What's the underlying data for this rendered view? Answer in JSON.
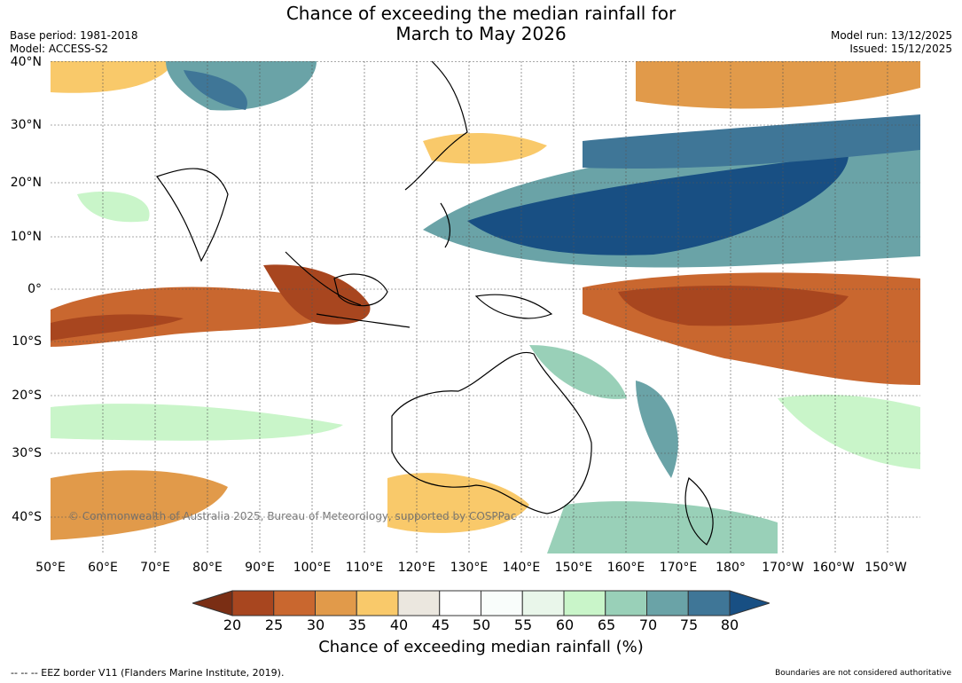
{
  "title": {
    "line1": "Chance of exceeding the median rainfall for",
    "line2": "March to May 2026"
  },
  "meta": {
    "base_period": "Base period: 1981-2018",
    "model": "Model: ACCESS-S2",
    "model_run": "Model run: 13/12/2025",
    "issued": "Issued: 15/12/2025"
  },
  "map": {
    "longitude_labels": [
      "50°E",
      "60°E",
      "70°E",
      "80°E",
      "90°E",
      "100°E",
      "110°E",
      "120°E",
      "130°E",
      "140°E",
      "150°E",
      "160°E",
      "170°E",
      "180°",
      "170°W",
      "160°W",
      "150°W"
    ],
    "latitude_labels": [
      "40°N",
      "30°N",
      "20°N",
      "10°N",
      "0°",
      "10°S",
      "20°S",
      "30°S",
      "40°S"
    ],
    "lon_range_deg": [
      50,
      215
    ],
    "lat_range_deg": [
      -46,
      40
    ],
    "copyright": "© Commonwealth of Australia 2025, Bureau of Meteorology, supported by COSPPac"
  },
  "colorbar": {
    "labels": [
      "20",
      "25",
      "30",
      "35",
      "40",
      "45",
      "50",
      "55",
      "60",
      "65",
      "70",
      "75",
      "80"
    ],
    "colors": [
      "#7a2e14",
      "#a8461f",
      "#c9672f",
      "#e19a4a",
      "#f9c96a",
      "#ebe7df",
      "#ffffff",
      "#f9fdfb",
      "#e9f6ea",
      "#c9f5c9",
      "#99d0b8",
      "#6aa3a7",
      "#3f7697",
      "#184f83"
    ],
    "title": "Chance of exceeding median rainfall (%)"
  },
  "footnotes": {
    "eez": "--  --  -- EEZ border V11 (Flanders Marine Institute, 2019).",
    "boundaries": "Boundaries are not considered authoritative"
  }
}
